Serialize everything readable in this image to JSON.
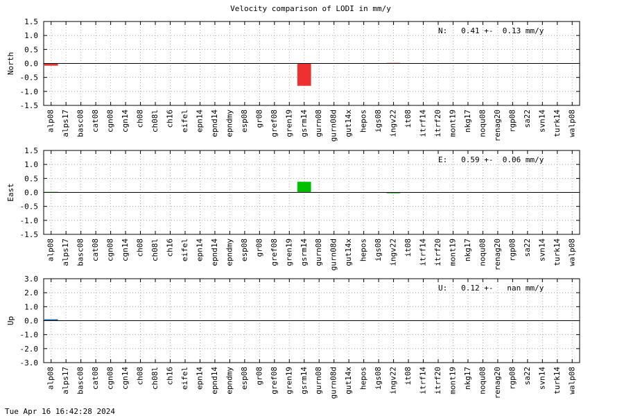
{
  "title": "Velocity comparison of LODI in mm/y",
  "footer": "Tue Apr 16 16:42:28 2024",
  "chart_data": [
    {
      "type": "bar",
      "ylabel": "North",
      "annotation": "N:   0.41 +-  0.13 mm/y",
      "color": "#ee3030",
      "grid": true,
      "categories": [
        "alp08",
        "alps17",
        "basc08",
        "cat08",
        "cgn08",
        "cgn14",
        "ch08",
        "ch08l",
        "ch16",
        "eifel",
        "epn14",
        "epnd14",
        "epndmy",
        "esp08",
        "gr08",
        "gref08",
        "gren19",
        "gsrm14",
        "gurn08",
        "gurn08d",
        "gut14x",
        "hepos",
        "igs08",
        "ingv22",
        "it08",
        "itrf14",
        "itrf20",
        "mont19",
        "nkg17",
        "noqu08",
        "renag20",
        "rgp08",
        "sa22",
        "svn14",
        "turk14",
        "walp08"
      ],
      "values": [
        -0.08,
        0,
        0,
        0,
        0,
        0,
        0,
        0,
        0,
        0,
        0,
        0,
        0,
        0,
        0,
        0,
        0,
        -0.8,
        0,
        0,
        0,
        0,
        0,
        0.02,
        0,
        0,
        0,
        0,
        0,
        0,
        0,
        0,
        0,
        0,
        0,
        0
      ],
      "ylim": [
        -1.5,
        1.5
      ],
      "yticks": [
        1.5,
        {
          "value": 1,
          "label": "1.0"
        },
        0.5,
        {
          "value": 0,
          "label": "0.0"
        },
        -0.5,
        {
          "value": -1,
          "label": "-1.0"
        },
        -1.5
      ]
    },
    {
      "type": "bar",
      "ylabel": "East",
      "annotation": "E:   0.59 +-  0.06 mm/y",
      "color": "#00c000",
      "grid": true,
      "categories": [
        "alp08",
        "alps17",
        "basc08",
        "cat08",
        "cgn08",
        "cgn14",
        "ch08",
        "ch08l",
        "ch16",
        "eifel",
        "epn14",
        "epnd14",
        "epndmy",
        "esp08",
        "gr08",
        "gref08",
        "gren19",
        "gsrm14",
        "gurn08",
        "gurn08d",
        "gut14x",
        "hepos",
        "igs08",
        "ingv22",
        "it08",
        "itrf14",
        "itrf20",
        "mont19",
        "nkg17",
        "noqu08",
        "renag20",
        "rgp08",
        "sa22",
        "svn14",
        "turk14",
        "walp08"
      ],
      "values": [
        0.02,
        0,
        0,
        0,
        0,
        0,
        0,
        0,
        0,
        0,
        0,
        0,
        0,
        0,
        0,
        0,
        0,
        0.38,
        0,
        0,
        0,
        0,
        0,
        -0.03,
        0,
        0,
        0,
        0,
        0,
        0,
        0,
        0,
        0,
        0,
        0,
        0
      ],
      "ylim": [
        -1.5,
        1.5
      ],
      "yticks": [
        1.5,
        {
          "value": 1,
          "label": "1.0"
        },
        0.5,
        {
          "value": 0,
          "label": "0.0"
        },
        -0.5,
        {
          "value": -1,
          "label": "-1.0"
        },
        -1.5
      ]
    },
    {
      "type": "bar",
      "ylabel": "Up",
      "annotation": "U:   0.12 +-   nan mm/y",
      "color": "#2070c0",
      "grid": true,
      "categories": [
        "alp08",
        "alps17",
        "basc08",
        "cat08",
        "cgn08",
        "cgn14",
        "ch08",
        "ch08l",
        "ch16",
        "eifel",
        "epn14",
        "epnd14",
        "epndmy",
        "esp08",
        "gr08",
        "gref08",
        "gren19",
        "gsrm14",
        "gurn08",
        "gurn08d",
        "gut14x",
        "hepos",
        "igs08",
        "ingv22",
        "it08",
        "itrf14",
        "itrf20",
        "mont19",
        "nkg17",
        "noqu08",
        "renag20",
        "rgp08",
        "sa22",
        "svn14",
        "turk14",
        "walp08"
      ],
      "values": [
        0.1,
        0,
        0,
        0,
        0,
        0,
        0,
        0,
        0,
        0,
        0,
        0,
        0,
        0,
        0,
        0,
        0,
        0,
        0,
        0,
        0,
        0,
        0,
        0,
        0,
        0,
        0,
        0,
        0,
        0,
        0,
        0,
        0,
        0,
        0,
        0
      ],
      "ylim": [
        -3,
        3
      ],
      "yticks": [
        {
          "value": 3,
          "label": "3.0"
        },
        {
          "value": 2,
          "label": "2.0"
        },
        {
          "value": 1,
          "label": "1.0"
        },
        {
          "value": 0,
          "label": "0.0"
        },
        {
          "value": -1,
          "label": "-1.0"
        },
        {
          "value": -2,
          "label": "-2.0"
        },
        {
          "value": -3,
          "label": "-3.0"
        }
      ]
    }
  ]
}
